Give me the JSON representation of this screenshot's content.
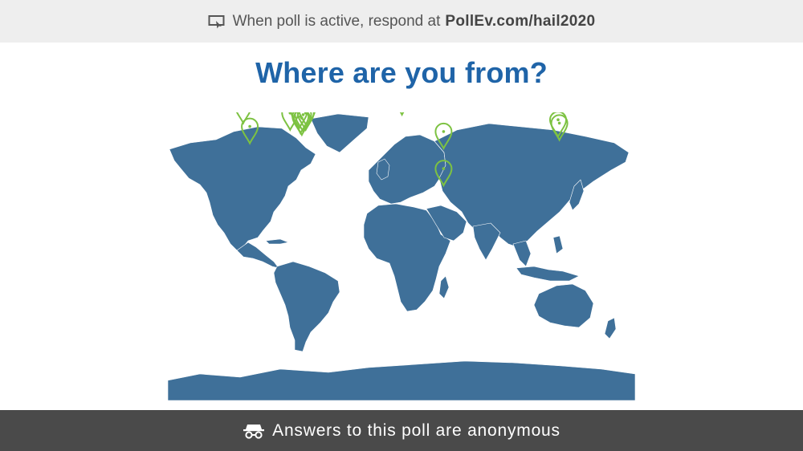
{
  "header": {
    "instruction": "When poll is active, respond at",
    "url": "PollEv.com/hail2020"
  },
  "poll": {
    "title": "Where are you from?",
    "map_color": "#3f7099",
    "pin_color": "#7dc242",
    "pins": [
      {
        "lon": -122,
        "lat": 46
      },
      {
        "lon": -117,
        "lat": 34
      },
      {
        "lon": -86,
        "lat": 42
      },
      {
        "lon": -79,
        "lat": 43
      },
      {
        "lon": -78,
        "lat": 40
      },
      {
        "lon": -76,
        "lat": 41
      },
      {
        "lon": -74,
        "lat": 42
      },
      {
        "lon": -73,
        "lat": 44
      },
      {
        "lon": -77,
        "lat": 39
      },
      {
        "lon": 0,
        "lat": 51
      },
      {
        "lon": 32,
        "lat": 31
      },
      {
        "lon": 32,
        "lat": 9
      },
      {
        "lon": 120,
        "lat": 38
      },
      {
        "lon": 121,
        "lat": 36
      }
    ]
  },
  "footer": {
    "text": "Answers to this poll are anonymous"
  },
  "icons": {
    "top": "screen-response-icon",
    "bottom": "anonymous-icon",
    "pin": "map-pin-icon"
  }
}
